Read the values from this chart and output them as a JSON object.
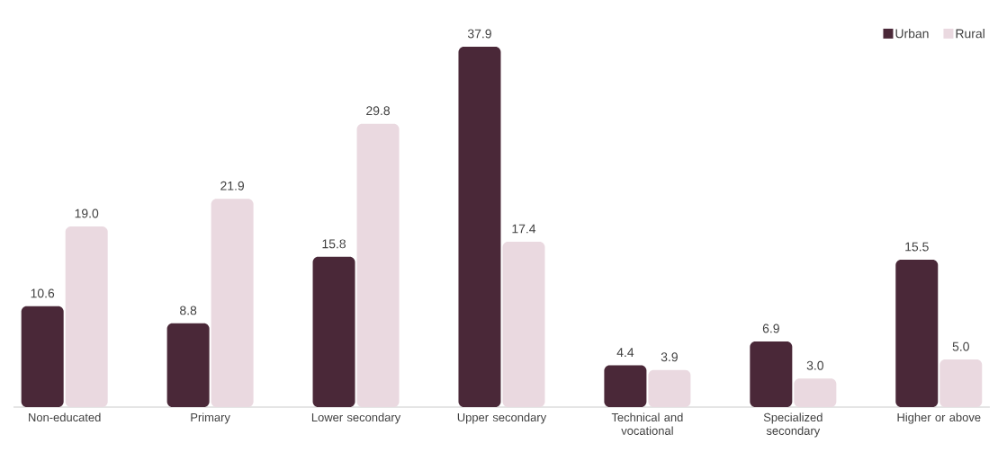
{
  "chart_data": {
    "type": "bar",
    "categories": [
      "Non-educated",
      "Primary",
      "Lower secondary",
      "Upper secondary",
      "Technical and vocational",
      "Specialized secondary",
      "Higher or above"
    ],
    "series": [
      {
        "name": "Urban",
        "color": "#4a2838",
        "values": [
          10.6,
          8.8,
          15.8,
          37.9,
          4.4,
          6.9,
          15.5
        ],
        "value_labels": [
          "10.6",
          "8.8",
          "15.8",
          "37.9",
          "4.4",
          "6.9",
          "15.5"
        ]
      },
      {
        "name": "Rural",
        "color": "#ead9e0",
        "values": [
          19.0,
          21.9,
          29.8,
          17.4,
          3.9,
          3.0,
          5.0
        ],
        "value_labels": [
          "19.0",
          "21.9",
          "29.8",
          "17.4",
          "3.9",
          "3.0",
          "5.0"
        ]
      }
    ],
    "legend": "top right"
  }
}
